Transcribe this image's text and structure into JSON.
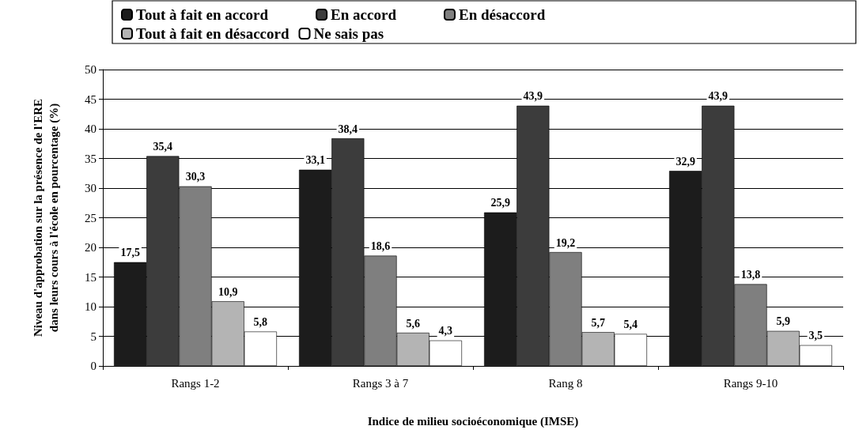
{
  "chart_data": {
    "type": "bar",
    "xlabel": "Indice de milieu socioéconomique (IMSE)",
    "ylabel": "Niveau d'approbation sur la présence de l'ERE\ndans leurs cours à l'école en pourcentage (%)",
    "categories": [
      "Rangs 1-2",
      "Rangs 3 à 7",
      "Rang 8",
      "Rangs 9-10"
    ],
    "series": [
      {
        "name": "Tout à fait en accord",
        "color": "#1c1c1c",
        "values": [
          17.5,
          33.1,
          25.9,
          32.9
        ],
        "value_labels": [
          "17,5",
          "33,1",
          "25,9",
          "32,9"
        ]
      },
      {
        "name": "En accord",
        "color": "#3c3c3c",
        "values": [
          35.4,
          38.4,
          43.9,
          43.9
        ],
        "value_labels": [
          "35,4",
          "38,4",
          "43,9",
          "43,9"
        ]
      },
      {
        "name": "En désaccord",
        "color": "#7f7f7f",
        "values": [
          30.3,
          18.6,
          19.2,
          13.8
        ],
        "value_labels": [
          "30,3",
          "18,6",
          "19,2",
          "13,8"
        ]
      },
      {
        "name": "Tout à fait en désaccord",
        "color": "#b4b4b4",
        "values": [
          10.9,
          5.6,
          5.7,
          5.9
        ],
        "value_labels": [
          "10,9",
          "5,6",
          "5,7",
          "5,9"
        ]
      },
      {
        "name": "Ne sais pas",
        "color": "#ffffff",
        "values": [
          5.8,
          4.3,
          5.4,
          3.5
        ],
        "value_labels": [
          "5,8",
          "4,3",
          "5,4",
          "3,5"
        ]
      }
    ],
    "ylim": [
      0,
      50
    ],
    "yticks": [
      0,
      5,
      10,
      15,
      20,
      25,
      30,
      35,
      40,
      45,
      50
    ],
    "grid": "y",
    "legend": "top"
  }
}
